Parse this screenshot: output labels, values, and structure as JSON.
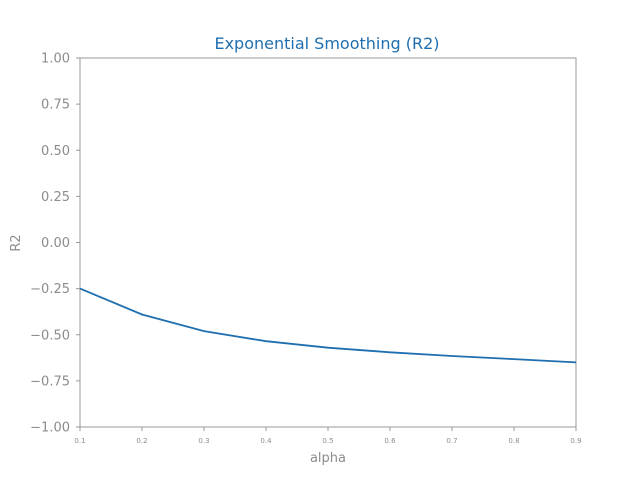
{
  "chart_data": {
    "type": "line",
    "title": "Exponential Smoothing (R2)",
    "xlabel": "alpha",
    "ylabel": "R2",
    "x": [
      0.1,
      0.2,
      0.3,
      0.4,
      0.5,
      0.6,
      0.7,
      0.8,
      0.9
    ],
    "series": [
      {
        "values": [
          -0.25,
          -0.39,
          -0.48,
          -0.535,
          -0.57,
          -0.595,
          -0.615,
          -0.632,
          -0.65
        ]
      }
    ],
    "xlim": [
      0.1,
      0.9
    ],
    "ylim": [
      -1.0,
      1.0
    ],
    "x_ticks": [
      "0.1",
      "0.2",
      "0.3",
      "0.4",
      "0.5",
      "0.6",
      "0.7",
      "0.8",
      "0.9"
    ],
    "y_ticks": [
      "1.00",
      "0.75",
      "0.50",
      "0.25",
      "0.00",
      "−0.25",
      "−0.50",
      "−0.75",
      "−1.00"
    ],
    "y_tick_values": [
      1.0,
      0.75,
      0.5,
      0.25,
      0.0,
      -0.25,
      -0.5,
      -0.75,
      -1.0
    ],
    "grid": false,
    "colors": {
      "line": "#1f6fb0",
      "title": "#1f6fb0",
      "axis": "#999999",
      "text": "#8c8c8c"
    }
  }
}
